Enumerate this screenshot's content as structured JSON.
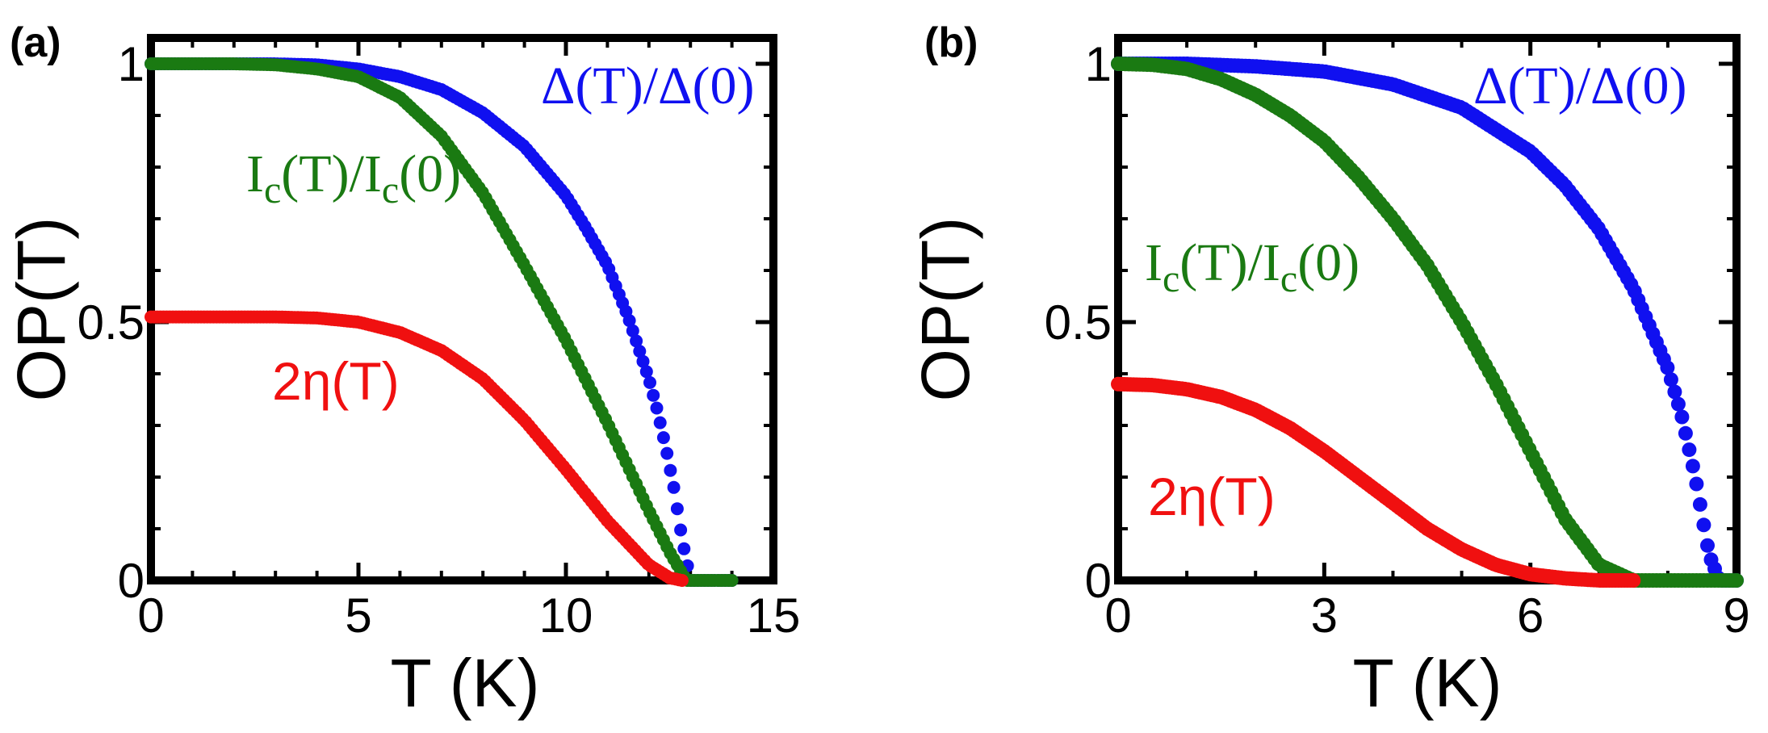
{
  "colors": {
    "delta": "#1010f0",
    "ic": "#1a7a12",
    "eta": "#f01010"
  },
  "chart_data": [
    {
      "type": "scatter",
      "panel_label": "(a)",
      "xlabel": "T (K)",
      "ylabel": "OP(T)",
      "xlim": [
        0,
        15
      ],
      "ylim": [
        0,
        1.05
      ],
      "xticks": [
        "0",
        "5",
        "10",
        "15"
      ],
      "yticks": [
        "0",
        "0.5",
        "1"
      ],
      "xtick_values": [
        0,
        5,
        10,
        15
      ],
      "ytick_values": [
        0,
        0.5,
        1
      ],
      "xminor": [
        1,
        2,
        3,
        4,
        6,
        7,
        8,
        9,
        11,
        12,
        13,
        14
      ],
      "yminor": [
        0.1,
        0.2,
        0.3,
        0.4,
        0.6,
        0.7,
        0.8,
        0.9
      ],
      "grid": false,
      "series": [
        {
          "key": "delta",
          "label_main": "Δ(T)/Δ(0)",
          "x": [
            0,
            1,
            2,
            3,
            4,
            5,
            6,
            7,
            8,
            9,
            10,
            10.5,
            11,
            11.5,
            12,
            12.2,
            12.4,
            12.6,
            12.8,
            13.0,
            13.3,
            13.6,
            14.0
          ],
          "y": [
            1.0,
            1.0,
            1.0,
            1.0,
            0.998,
            0.99,
            0.975,
            0.95,
            0.905,
            0.84,
            0.745,
            0.68,
            0.61,
            0.51,
            0.39,
            0.33,
            0.26,
            0.18,
            0.08,
            0.0,
            0.0,
            0.0,
            0.0
          ]
        },
        {
          "key": "ic",
          "label_main": "I",
          "label_sub": "c",
          "label_mid": "(T)/I",
          "label_end": "(0)",
          "x": [
            0,
            1,
            2,
            3,
            4,
            5,
            6,
            7,
            8,
            9,
            10,
            11,
            12,
            12.5,
            12.9,
            13.3,
            13.6,
            14.0
          ],
          "y": [
            1.0,
            1.0,
            1.0,
            0.998,
            0.99,
            0.975,
            0.935,
            0.86,
            0.75,
            0.61,
            0.465,
            0.305,
            0.135,
            0.055,
            0.0,
            0.0,
            0.0,
            0.0
          ]
        },
        {
          "key": "eta",
          "label_main": "2η(T)",
          "x": [
            0,
            1,
            2,
            3,
            4,
            5,
            6,
            7,
            8,
            9,
            10,
            11,
            12,
            12.5,
            12.8
          ],
          "y": [
            0.51,
            0.51,
            0.51,
            0.51,
            0.508,
            0.5,
            0.48,
            0.445,
            0.39,
            0.31,
            0.215,
            0.115,
            0.03,
            0.005,
            0.0
          ]
        }
      ]
    },
    {
      "type": "scatter",
      "panel_label": "(b)",
      "xlabel": "T (K)",
      "ylabel": "OP(T)",
      "xlim": [
        0,
        9
      ],
      "ylim": [
        0,
        1.05
      ],
      "xticks": [
        "0",
        "3",
        "6",
        "9"
      ],
      "yticks": [
        "0",
        "0.5",
        "1"
      ],
      "xtick_values": [
        0,
        3,
        6,
        9
      ],
      "ytick_values": [
        0,
        0.5,
        1
      ],
      "xminor": [
        1,
        2,
        4,
        5,
        7,
        8
      ],
      "yminor": [
        0.1,
        0.2,
        0.3,
        0.4,
        0.6,
        0.7,
        0.8,
        0.9
      ],
      "grid": false,
      "series": [
        {
          "key": "delta",
          "label_main": "Δ(T)/Δ(0)",
          "x": [
            0,
            1,
            2,
            3,
            4,
            5,
            6,
            6.5,
            7,
            7.5,
            8,
            8.2,
            8.4,
            8.6,
            8.75,
            9.0
          ],
          "y": [
            1.0,
            1.0,
            0.995,
            0.985,
            0.96,
            0.915,
            0.83,
            0.765,
            0.68,
            0.565,
            0.41,
            0.32,
            0.2,
            0.05,
            0.0,
            0.0
          ]
        },
        {
          "key": "ic",
          "label_main": "I",
          "label_sub": "c",
          "label_mid": "(T)/I",
          "label_end": "(0)",
          "x": [
            0,
            0.5,
            1,
            1.5,
            2,
            2.5,
            3,
            3.5,
            4,
            4.5,
            5,
            5.5,
            6,
            6.5,
            7,
            7.5,
            8,
            8.5,
            9
          ],
          "y": [
            1.0,
            0.998,
            0.99,
            0.97,
            0.94,
            0.9,
            0.85,
            0.78,
            0.7,
            0.61,
            0.5,
            0.38,
            0.25,
            0.12,
            0.03,
            0.0,
            0.0,
            0.0,
            0.0
          ]
        },
        {
          "key": "eta",
          "label_main": "2η(T)",
          "x": [
            0,
            0.5,
            1,
            1.5,
            2,
            2.5,
            3,
            3.5,
            4,
            4.5,
            5,
            5.5,
            6,
            6.5,
            7,
            7.5
          ],
          "y": [
            0.38,
            0.378,
            0.37,
            0.355,
            0.33,
            0.295,
            0.25,
            0.2,
            0.15,
            0.1,
            0.06,
            0.03,
            0.012,
            0.004,
            0.0,
            0.0
          ]
        }
      ]
    }
  ]
}
